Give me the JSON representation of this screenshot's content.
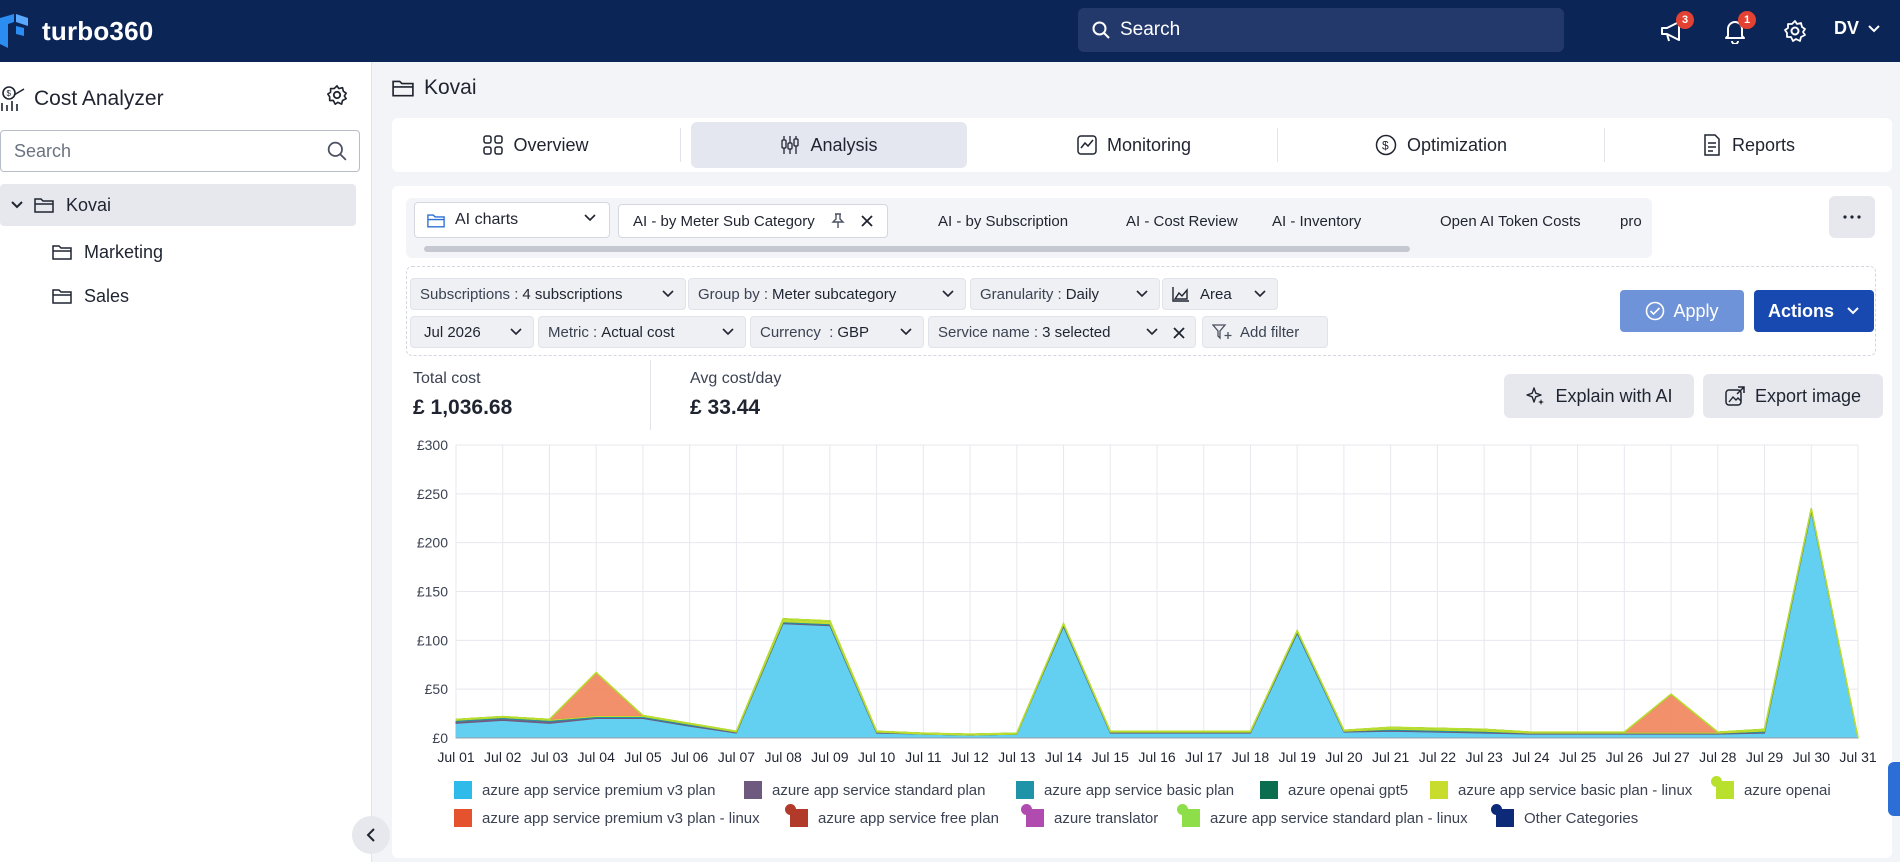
{
  "header": {
    "brand": "turbo360",
    "search_placeholder": "Search",
    "announcements_badge": "3",
    "notifications_badge": "1",
    "user_initials": "DV"
  },
  "sidebar": {
    "title": "Cost Analyzer",
    "search_placeholder": "Search",
    "tree": {
      "root": "Kovai",
      "children": [
        "Marketing",
        "Sales"
      ]
    }
  },
  "breadcrumb": "Kovai",
  "tabs": [
    "Overview",
    "Analysis",
    "Monitoring",
    "Optimization",
    "Reports"
  ],
  "active_tab": "Analysis",
  "chart_group": "AI charts",
  "chart_tabs": [
    "AI - by Meter Sub Category",
    "AI - by Subscription",
    "AI - Cost Review",
    "AI - Inventory",
    "Open AI Token Costs",
    "pro"
  ],
  "filters": {
    "subscriptions": {
      "key": "Subscriptions",
      "value": "4 subscriptions"
    },
    "group_by": {
      "key": "Group by",
      "value": "Meter subcategory"
    },
    "granularity": {
      "key": "Granularity",
      "value": "Daily"
    },
    "chart_type": "Area",
    "period": "Jul 2026",
    "metric": {
      "key": "Metric",
      "value": "Actual cost"
    },
    "currency": {
      "key": "Currency",
      "value": "GBP"
    },
    "service_name": {
      "key": "Service name",
      "value": "3 selected"
    },
    "add_filter": "Add filter"
  },
  "buttons": {
    "apply": "Apply",
    "actions": "Actions",
    "explain": "Explain with AI",
    "export": "Export image"
  },
  "kpis": {
    "total_label": "Total cost",
    "total_value": "£ 1,036.68",
    "avg_label": "Avg cost/day",
    "avg_value": "£ 33.44"
  },
  "chart_data": {
    "type": "area",
    "stacked": true,
    "categories": [
      "Jul 01",
      "Jul 02",
      "Jul 03",
      "Jul 04",
      "Jul 05",
      "Jul 06",
      "Jul 07",
      "Jul 08",
      "Jul 09",
      "Jul 10",
      "Jul 11",
      "Jul 12",
      "Jul 13",
      "Jul 14",
      "Jul 15",
      "Jul 16",
      "Jul 17",
      "Jul 18",
      "Jul 19",
      "Jul 20",
      "Jul 21",
      "Jul 22",
      "Jul 23",
      "Jul 24",
      "Jul 25",
      "Jul 26",
      "Jul 27",
      "Jul 28",
      "Jul 29",
      "Jul 30",
      "Jul 31"
    ],
    "y_ticks": [
      "£0",
      "£50",
      "£100",
      "£150",
      "£200",
      "£250",
      "£300"
    ],
    "ylim": [
      0,
      300
    ],
    "grid": true,
    "legend_position": "bottom",
    "series": [
      {
        "name": "azure app service premium v3 plan",
        "color": "#5ccef0",
        "values": [
          15,
          18,
          15,
          20,
          20,
          12,
          5,
          117,
          115,
          5,
          4,
          3,
          4,
          114,
          5,
          5,
          5,
          5,
          107,
          6,
          7,
          6,
          5,
          4,
          4,
          4,
          4,
          4,
          5,
          232,
          0
        ]
      },
      {
        "name": "azure app service standard plan",
        "color": "#6e5a7e",
        "values": [
          2,
          2,
          2,
          1,
          1,
          1,
          1,
          1,
          1,
          1,
          0,
          0,
          0,
          1,
          1,
          1,
          1,
          1,
          1,
          1,
          1,
          1,
          1,
          1,
          1,
          1,
          1,
          1,
          1,
          1,
          0
        ]
      },
      {
        "name": "azure app service basic plan",
        "color": "#1f93a8",
        "values": [
          1,
          1,
          1,
          1,
          1,
          1,
          0,
          1,
          1,
          0,
          0,
          0,
          0,
          1,
          0,
          0,
          0,
          0,
          1,
          0,
          1,
          1,
          1,
          0,
          0,
          0,
          0,
          0,
          1,
          1,
          0
        ]
      },
      {
        "name": "azure openai gpt5",
        "color": "#0a6d4f",
        "values": [
          0,
          0,
          0,
          0,
          0,
          0,
          0,
          0,
          0,
          0,
          0,
          0,
          0,
          0,
          0,
          0,
          0,
          0,
          0,
          0,
          0,
          0,
          0,
          0,
          0,
          0,
          0,
          0,
          0,
          0,
          0
        ]
      },
      {
        "name": "azure app service basic plan - linux",
        "color": "#c8dc2e",
        "values": [
          1,
          1,
          1,
          1,
          1,
          1,
          1,
          2,
          2,
          1,
          1,
          1,
          1,
          1,
          1,
          1,
          1,
          1,
          1,
          1,
          1,
          1,
          1,
          1,
          1,
          1,
          1,
          1,
          1,
          1,
          0
        ]
      },
      {
        "name": "azure openai",
        "color": "#a8e03c",
        "values": [
          0,
          0,
          0,
          0,
          0,
          0,
          0,
          1,
          1,
          0,
          0,
          0,
          0,
          0,
          0,
          0,
          0,
          0,
          0,
          0,
          1,
          1,
          1,
          0,
          0,
          0,
          0,
          0,
          1,
          0,
          0
        ]
      },
      {
        "name": "azure app service premium v3 plan - linux",
        "color": "#f08a63",
        "values": [
          0,
          0,
          0,
          44,
          0,
          0,
          0,
          0,
          0,
          0,
          0,
          0,
          0,
          0,
          0,
          0,
          0,
          0,
          0,
          0,
          0,
          0,
          0,
          0,
          0,
          0,
          39,
          0,
          0,
          0,
          0
        ]
      },
      {
        "name": "azure app service free plan",
        "color": "#b23a2a",
        "values": [
          0,
          0,
          0,
          0,
          0,
          0,
          0,
          0,
          0,
          0,
          0,
          0,
          0,
          0,
          0,
          0,
          0,
          0,
          0,
          0,
          0,
          0,
          0,
          0,
          0,
          0,
          0,
          0,
          0,
          0,
          0
        ]
      },
      {
        "name": "azure translator",
        "color": "#b04cb0",
        "values": [
          0,
          0,
          0,
          0,
          0,
          0,
          0,
          0,
          0,
          0,
          0,
          0,
          0,
          0,
          0,
          0,
          0,
          0,
          0,
          0,
          0,
          0,
          0,
          0,
          0,
          0,
          0,
          0,
          0,
          0,
          0
        ]
      },
      {
        "name": "azure app service standard plan - linux",
        "color": "#8ede4a",
        "values": [
          0,
          0,
          0,
          0,
          0,
          0,
          0,
          0,
          0,
          0,
          0,
          0,
          0,
          0,
          0,
          0,
          0,
          0,
          0,
          0,
          0,
          0,
          0,
          0,
          0,
          0,
          0,
          0,
          0,
          0,
          0
        ]
      },
      {
        "name": "Other Categories",
        "color": "#0c2a78",
        "values": [
          0,
          0,
          0,
          0,
          0,
          0,
          0,
          0,
          0,
          0,
          0,
          0,
          0,
          0,
          0,
          0,
          0,
          0,
          0,
          0,
          0,
          0,
          0,
          0,
          0,
          0,
          0,
          0,
          0,
          0,
          0
        ]
      }
    ],
    "legend": [
      {
        "name": "azure app service premium v3 plan",
        "color": "#2fbbe9",
        "dot": ""
      },
      {
        "name": "azure app service standard plan",
        "color": "#6e5a7e",
        "dot": ""
      },
      {
        "name": "azure app service basic plan",
        "color": "#1f93a8",
        "dot": ""
      },
      {
        "name": "azure openai gpt5",
        "color": "#0a6d4f",
        "dot": ""
      },
      {
        "name": "azure app service basic plan - linux",
        "color": "#c8dc2e",
        "dot": ""
      },
      {
        "name": "azure openai",
        "color": "#b8e02c",
        "dot": "#b8e02c"
      },
      {
        "name": "azure app service premium v3 plan - linux",
        "color": "#e5532e",
        "dot": ""
      },
      {
        "name": "azure app service free plan",
        "color": "#b23a2a",
        "dot": "#b23a2a"
      },
      {
        "name": "azure translator",
        "color": "#b04cb0",
        "dot": "#b04cb0"
      },
      {
        "name": "azure app service standard plan - linux",
        "color": "#8ede4a",
        "dot": "#8ede4a"
      },
      {
        "name": "Other Categories",
        "color": "#0c2a78",
        "dot": "#0c2a78"
      }
    ]
  }
}
